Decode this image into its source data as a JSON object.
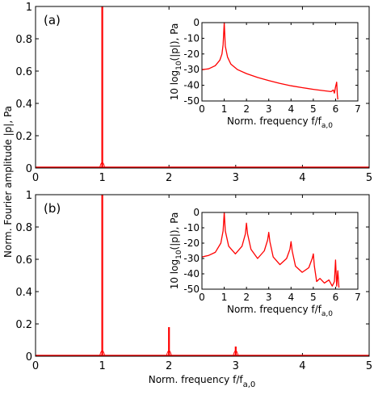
{
  "figure": {
    "ylabel": "Norm. Fourier amplitude |p|, Pa",
    "xlabel": "Norm. frequency f/f",
    "xlabel_sub": "a,0"
  },
  "chart_data": [
    {
      "id": "a",
      "panel_label": "(a)",
      "type": "line",
      "xlim": [
        0,
        5
      ],
      "ylim": [
        0,
        1
      ],
      "xticks": [
        0,
        1,
        2,
        3,
        4,
        5
      ],
      "yticks": [
        0,
        0.2,
        0.4,
        0.6,
        0.8,
        1
      ],
      "ytick_labels": [
        "0",
        "0.2",
        "0.4",
        "0.6",
        "0.8",
        "1"
      ],
      "series_color": "#ff0000",
      "peaks": [
        {
          "x": 1.0,
          "y": 1.0
        }
      ],
      "baseline": 0.005,
      "inset": {
        "type": "line",
        "ylabel": "10 log",
        "ylabel_sub": "10",
        "ylabel_rest": "(|p|), Pa",
        "xlabel": "Norm. frequency f/f",
        "xlabel_sub": "a,0",
        "xlim": [
          0,
          7
        ],
        "ylim": [
          -50,
          0
        ],
        "xticks": [
          0,
          1,
          2,
          3,
          4,
          5,
          6,
          7
        ],
        "yticks": [
          0,
          -10,
          -20,
          -30,
          -40,
          -50
        ],
        "points": [
          [
            0,
            -30
          ],
          [
            0.3,
            -29.5
          ],
          [
            0.6,
            -27.5
          ],
          [
            0.8,
            -24
          ],
          [
            0.9,
            -20
          ],
          [
            0.95,
            -14
          ],
          [
            1.0,
            0
          ],
          [
            1.05,
            -15
          ],
          [
            1.15,
            -22
          ],
          [
            1.3,
            -26.5
          ],
          [
            1.6,
            -30
          ],
          [
            2.0,
            -32.5
          ],
          [
            2.5,
            -35
          ],
          [
            3.0,
            -37
          ],
          [
            3.5,
            -38.8
          ],
          [
            4.0,
            -40.3
          ],
          [
            4.5,
            -41.5
          ],
          [
            5.0,
            -42.6
          ],
          [
            5.5,
            -43.5
          ],
          [
            5.8,
            -44
          ],
          [
            5.9,
            -43
          ],
          [
            5.95,
            -45
          ],
          [
            6.0,
            -41
          ],
          [
            6.05,
            -38
          ],
          [
            6.08,
            -46
          ],
          [
            6.1,
            -49
          ]
        ]
      }
    },
    {
      "id": "b",
      "panel_label": "(b)",
      "type": "line",
      "xlim": [
        0,
        5
      ],
      "ylim": [
        0,
        1
      ],
      "xticks": [
        0,
        1,
        2,
        3,
        4,
        5
      ],
      "yticks": [
        0,
        0.2,
        0.4,
        0.6,
        0.8,
        1
      ],
      "ytick_labels": [
        "0",
        "0.2",
        "0.4",
        "0.6",
        "0.8",
        "1"
      ],
      "series_color": "#ff0000",
      "peaks": [
        {
          "x": 1.0,
          "y": 1.0
        },
        {
          "x": 2.0,
          "y": 0.18
        },
        {
          "x": 3.0,
          "y": 0.06
        }
      ],
      "baseline": 0.005,
      "inset": {
        "type": "line",
        "ylabel": "10 log",
        "ylabel_sub": "10",
        "ylabel_rest": "(|p|), Pa",
        "xlabel": "Norm. frequency f/f",
        "xlabel_sub": "a,0",
        "xlim": [
          0,
          7
        ],
        "ylim": [
          -50,
          0
        ],
        "xticks": [
          0,
          1,
          2,
          3,
          4,
          5,
          6,
          7
        ],
        "yticks": [
          0,
          -10,
          -20,
          -30,
          -40,
          -50
        ],
        "points": [
          [
            0,
            -29
          ],
          [
            0.3,
            -28
          ],
          [
            0.6,
            -26
          ],
          [
            0.85,
            -20
          ],
          [
            0.95,
            -12
          ],
          [
            1.0,
            0
          ],
          [
            1.05,
            -12
          ],
          [
            1.2,
            -22
          ],
          [
            1.5,
            -27
          ],
          [
            1.8,
            -22
          ],
          [
            1.95,
            -14
          ],
          [
            2.0,
            -7
          ],
          [
            2.05,
            -14
          ],
          [
            2.2,
            -24
          ],
          [
            2.5,
            -30
          ],
          [
            2.8,
            -25
          ],
          [
            2.95,
            -18
          ],
          [
            3.0,
            -13
          ],
          [
            3.05,
            -19
          ],
          [
            3.2,
            -29
          ],
          [
            3.5,
            -34
          ],
          [
            3.8,
            -30
          ],
          [
            3.95,
            -24
          ],
          [
            4.0,
            -19
          ],
          [
            4.05,
            -25
          ],
          [
            4.2,
            -35
          ],
          [
            4.5,
            -39
          ],
          [
            4.8,
            -36
          ],
          [
            4.95,
            -30
          ],
          [
            5.0,
            -27
          ],
          [
            5.05,
            -35
          ],
          [
            5.15,
            -45
          ],
          [
            5.3,
            -43
          ],
          [
            5.5,
            -46
          ],
          [
            5.7,
            -44
          ],
          [
            5.85,
            -48
          ],
          [
            5.95,
            -45
          ],
          [
            6.0,
            -31
          ],
          [
            6.05,
            -48
          ],
          [
            6.1,
            -38
          ],
          [
            6.15,
            -49
          ]
        ]
      }
    }
  ]
}
